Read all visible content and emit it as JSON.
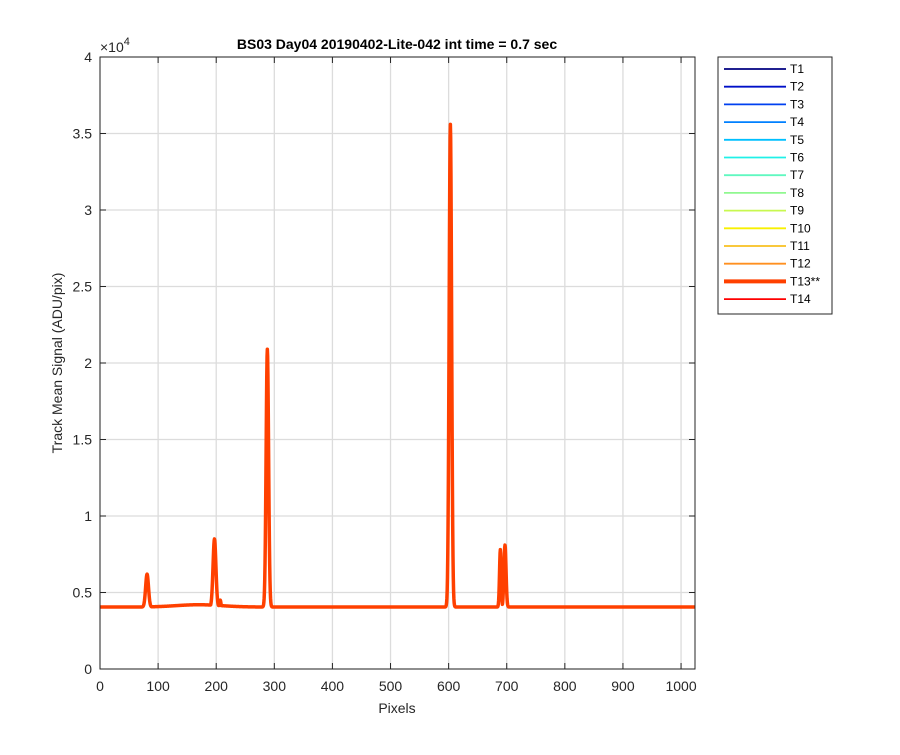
{
  "chart_data": {
    "type": "line",
    "title": "BS03 Day04 20190402-Lite-042 int time = 0.7 sec",
    "xlabel": "Pixels",
    "ylabel": "Track Mean Signal (ADU/pix)",
    "xlim": [
      0,
      1024
    ],
    "ylim": [
      0,
      40000
    ],
    "y_exponent_label": "×10",
    "y_exponent_power": "4",
    "x_ticks": [
      0,
      100,
      200,
      300,
      400,
      500,
      600,
      700,
      800,
      900,
      1000
    ],
    "x_tick_labels": [
      "0",
      "100",
      "200",
      "300",
      "400",
      "500",
      "600",
      "700",
      "800",
      "900",
      "1000"
    ],
    "y_ticks": [
      0,
      5000,
      10000,
      15000,
      20000,
      25000,
      30000,
      35000,
      40000
    ],
    "y_tick_labels": [
      "0",
      "0.5",
      "1",
      "1.5",
      "2",
      "2.5",
      "3",
      "3.5",
      "4"
    ],
    "grid": true,
    "legend_placement": "outside-right",
    "series": [
      {
        "name": "T1",
        "color": "#000080"
      },
      {
        "name": "T2",
        "color": "#0010c8"
      },
      {
        "name": "T3",
        "color": "#0040f0"
      },
      {
        "name": "T4",
        "color": "#0080ff"
      },
      {
        "name": "T5",
        "color": "#00c0ff"
      },
      {
        "name": "T6",
        "color": "#20f0e8"
      },
      {
        "name": "T7",
        "color": "#60f8c0"
      },
      {
        "name": "T8",
        "color": "#90f890"
      },
      {
        "name": "T9",
        "color": "#c8f850"
      },
      {
        "name": "T10",
        "color": "#f8f000"
      },
      {
        "name": "T11",
        "color": "#f8c020"
      },
      {
        "name": "T12",
        "color": "#ff9020"
      },
      {
        "name": "T13**",
        "color": "#ff4000",
        "emphasized": true
      },
      {
        "name": "T14",
        "color": "#ff0000"
      }
    ],
    "emphasized_series": "T13**",
    "baseline": 4050,
    "peaks": [
      {
        "x": 81,
        "height": 6200,
        "width": 3.5
      },
      {
        "x": 197,
        "height": 8500,
        "width": 3.5
      },
      {
        "x": 207,
        "height": 4500,
        "width": 1.5
      },
      {
        "x": 288,
        "height": 20900,
        "width": 3
      },
      {
        "x": 603,
        "height": 35600,
        "width": 3
      },
      {
        "x": 689,
        "height": 7800,
        "width": 2
      },
      {
        "x": 697,
        "height": 8100,
        "width": 2.5
      }
    ]
  }
}
